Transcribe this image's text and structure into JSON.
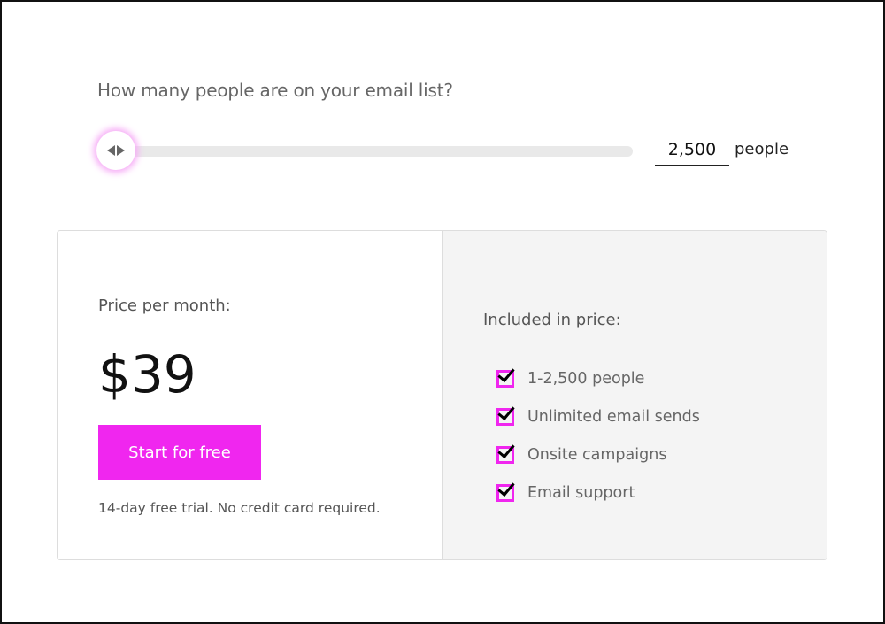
{
  "slider": {
    "question": "How many people are on your email list?",
    "value": "2,500",
    "unit": "people",
    "position_fraction": 0,
    "accent": "#f026ef"
  },
  "pricing": {
    "label": "Price per month:",
    "price": "$39",
    "cta": "Start for free",
    "trial_note": "14-day free trial. No credit card required."
  },
  "included": {
    "title": "Included in price:",
    "items": [
      {
        "label": "1-2,500 people"
      },
      {
        "label": "Unlimited email sends"
      },
      {
        "label": "Onsite campaigns"
      },
      {
        "label": "Email support"
      }
    ]
  }
}
